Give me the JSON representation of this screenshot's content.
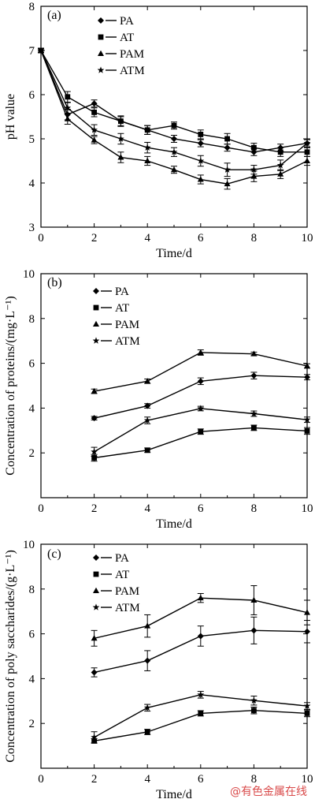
{
  "watermark": "@有色金属在线",
  "chart_data": [
    {
      "type": "line",
      "panel_label": "(a)",
      "xlabel": "Time/d",
      "ylabel": "pH value",
      "xlim": [
        0,
        10
      ],
      "ylim": [
        3,
        8
      ],
      "xticks": [
        0,
        2,
        4,
        6,
        8,
        10
      ],
      "yticks": [
        3,
        4,
        5,
        6,
        7,
        8
      ],
      "legend_position": "top-center",
      "series": [
        {
          "name": "PA",
          "marker": "diamond",
          "x": [
            0,
            1,
            2,
            3,
            4,
            5,
            6,
            7,
            8,
            9,
            10
          ],
          "values": [
            7.0,
            5.55,
            5.8,
            5.4,
            5.2,
            5.0,
            4.9,
            4.8,
            4.7,
            4.8,
            4.9
          ],
          "errors": [
            0.05,
            0.12,
            0.08,
            0.1,
            0.1,
            0.08,
            0.08,
            0.08,
            0.08,
            0.08,
            0.08
          ]
        },
        {
          "name": "AT",
          "marker": "square",
          "x": [
            0,
            1,
            2,
            3,
            4,
            5,
            6,
            7,
            8,
            9,
            10
          ],
          "values": [
            7.0,
            5.95,
            5.6,
            5.4,
            5.2,
            5.3,
            5.1,
            5.0,
            4.8,
            4.7,
            4.7
          ],
          "errors": [
            0.05,
            0.12,
            0.1,
            0.12,
            0.1,
            0.08,
            0.1,
            0.12,
            0.1,
            0.1,
            0.1
          ]
        },
        {
          "name": "PAM",
          "marker": "triangle",
          "x": [
            0,
            1,
            2,
            3,
            4,
            5,
            6,
            7,
            8,
            9,
            10
          ],
          "values": [
            7.0,
            5.45,
            4.97,
            4.58,
            4.5,
            4.3,
            4.08,
            3.98,
            4.15,
            4.2,
            4.5
          ],
          "errors": [
            0.05,
            0.12,
            0.08,
            0.12,
            0.1,
            0.08,
            0.1,
            0.12,
            0.12,
            0.1,
            0.1
          ]
        },
        {
          "name": "ATM",
          "marker": "star",
          "x": [
            0,
            1,
            2,
            3,
            4,
            5,
            6,
            7,
            8,
            9,
            10
          ],
          "values": [
            7.0,
            5.7,
            5.2,
            5.0,
            4.8,
            4.7,
            4.5,
            4.3,
            4.3,
            4.4,
            4.9
          ],
          "errors": [
            0.05,
            0.12,
            0.12,
            0.12,
            0.12,
            0.1,
            0.12,
            0.15,
            0.1,
            0.12,
            0.1
          ]
        }
      ]
    },
    {
      "type": "line",
      "panel_label": "(b)",
      "xlabel": "Time/d",
      "ylabel": "Concentration of proteins/(mg·L⁻¹)",
      "xlim": [
        0,
        10
      ],
      "ylim": [
        0,
        10
      ],
      "xticks": [
        0,
        2,
        4,
        6,
        8,
        10
      ],
      "yticks": [
        0,
        2,
        4,
        6,
        8,
        10
      ],
      "tick_label_skip_zero_y": true,
      "legend_position": "top-left",
      "series": [
        {
          "name": "PA",
          "marker": "diamond",
          "x": [
            2,
            4,
            6,
            8,
            10
          ],
          "values": [
            3.55,
            4.1,
            5.2,
            5.45,
            5.38
          ],
          "errors": [
            0.08,
            0.1,
            0.15,
            0.15,
            0.12
          ]
        },
        {
          "name": "AT",
          "marker": "square",
          "x": [
            2,
            4,
            6,
            8,
            10
          ],
          "values": [
            1.78,
            2.12,
            2.95,
            3.12,
            2.98
          ],
          "errors": [
            0.15,
            0.1,
            0.12,
            0.12,
            0.15
          ]
        },
        {
          "name": "PAM",
          "marker": "triangle",
          "x": [
            2,
            4,
            6,
            8,
            10
          ],
          "values": [
            4.75,
            5.2,
            6.48,
            6.42,
            5.88
          ],
          "errors": [
            0.1,
            0.1,
            0.12,
            0.08,
            0.1
          ]
        },
        {
          "name": "ATM",
          "marker": "star",
          "x": [
            2,
            4,
            6,
            8,
            10
          ],
          "values": [
            2.05,
            3.45,
            3.98,
            3.75,
            3.48
          ],
          "errors": [
            0.2,
            0.15,
            0.1,
            0.12,
            0.12
          ]
        }
      ]
    },
    {
      "type": "line",
      "panel_label": "(c)",
      "xlabel": "Time/d",
      "ylabel": "Concentration of poly saccharides/(g·L⁻¹)",
      "xlim": [
        0,
        10
      ],
      "ylim": [
        0,
        10
      ],
      "xticks": [
        0,
        2,
        4,
        6,
        8,
        10
      ],
      "yticks": [
        0,
        2,
        4,
        6,
        8,
        10
      ],
      "tick_label_skip_zero_y": true,
      "legend_position": "top-left",
      "series": [
        {
          "name": "PA",
          "marker": "diamond",
          "x": [
            2,
            4,
            6,
            8,
            10
          ],
          "values": [
            4.28,
            4.8,
            5.9,
            6.15,
            6.1
          ],
          "errors": [
            0.2,
            0.45,
            0.45,
            0.6,
            0.5
          ]
        },
        {
          "name": "AT",
          "marker": "square",
          "x": [
            2,
            4,
            6,
            8,
            10
          ],
          "values": [
            1.22,
            1.62,
            2.45,
            2.58,
            2.45
          ],
          "errors": [
            0.1,
            0.12,
            0.12,
            0.15,
            0.15
          ]
        },
        {
          "name": "PAM",
          "marker": "triangle",
          "x": [
            2,
            4,
            6,
            8,
            10
          ],
          "values": [
            5.8,
            6.35,
            7.6,
            7.5,
            6.95
          ],
          "errors": [
            0.35,
            0.5,
            0.2,
            0.65,
            0.55
          ]
        },
        {
          "name": "ATM",
          "marker": "star",
          "x": [
            2,
            4,
            6,
            8,
            10
          ],
          "values": [
            1.38,
            2.7,
            3.28,
            3.02,
            2.78
          ],
          "errors": [
            0.25,
            0.15,
            0.15,
            0.2,
            0.15
          ]
        }
      ]
    }
  ]
}
